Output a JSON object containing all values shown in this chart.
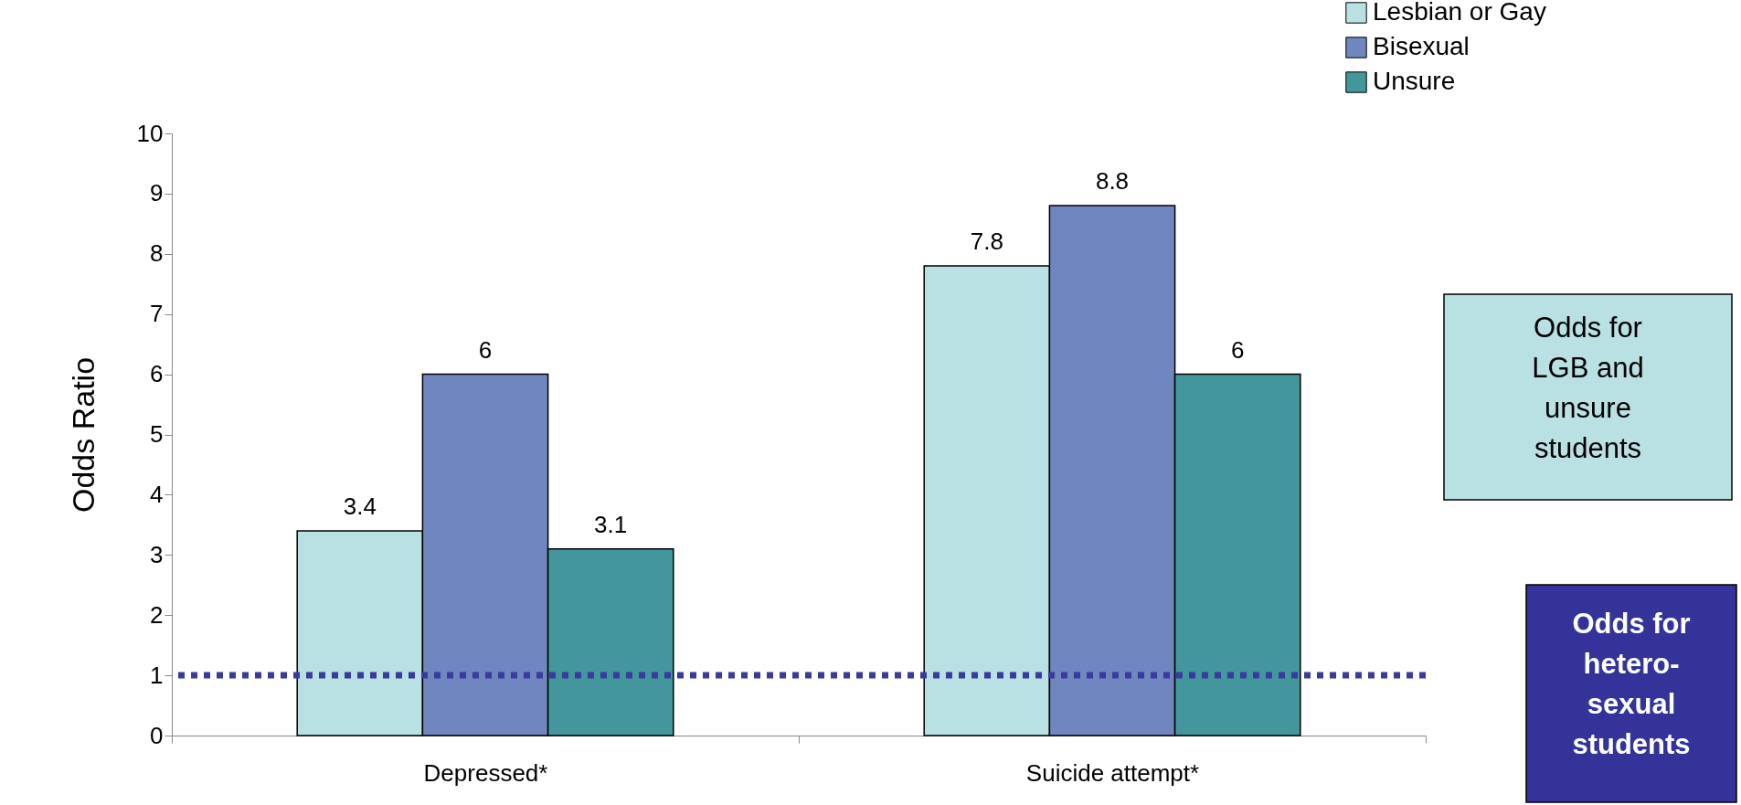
{
  "chart_data": {
    "type": "bar",
    "ylabel": "Odds Ratio",
    "categories": [
      "Depressed*",
      "Suicide attempt*"
    ],
    "series": [
      {
        "name": "Lesbian or Gay",
        "color": "#b9e0e2",
        "values": [
          3.4,
          7.8
        ]
      },
      {
        "name": "Bisexual",
        "color": "#6f86bf",
        "values": [
          6,
          8.8
        ]
      },
      {
        "name": "Unsure",
        "color": "#43979c",
        "values": [
          3.1,
          6
        ]
      }
    ],
    "ylim": [
      0,
      10
    ],
    "yticks": [
      0,
      1,
      2,
      3,
      4,
      5,
      6,
      7,
      8,
      9,
      10
    ],
    "data_labels": true,
    "legend": "top right",
    "grid": false,
    "ref_lines": [
      {
        "axis": "y",
        "value": 1,
        "color": "#3a3aa0",
        "line_style": "dotted"
      }
    ],
    "annotations": [
      "Odds for\nLGB and\nunsure\nstudents",
      "Odds for\nhetero-\nsexual\nstudents"
    ]
  }
}
